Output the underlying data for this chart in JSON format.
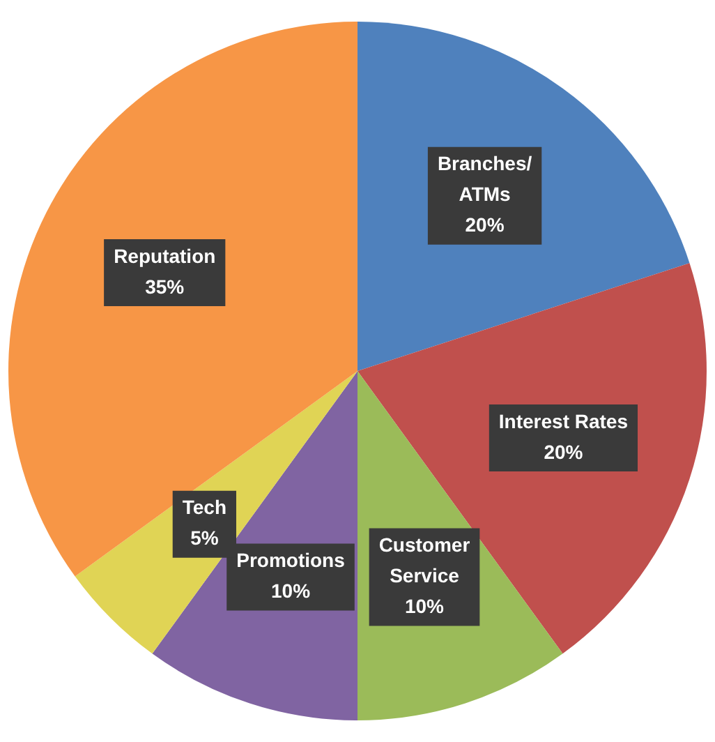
{
  "chart_data": {
    "type": "pie",
    "categories": [
      "Branches/ATMs",
      "Interest Rates",
      "Customer Service",
      "Promotions",
      "Tech",
      "Reputation"
    ],
    "values": [
      20,
      20,
      10,
      10,
      5,
      35
    ],
    "value_labels": [
      "20%",
      "20%",
      "10%",
      "10%",
      "5%",
      "35%"
    ],
    "colors": [
      "#4f81bd",
      "#c0504d",
      "#9bbb59",
      "#8064a2",
      "#e0d455",
      "#f79646"
    ],
    "legend": false
  }
}
